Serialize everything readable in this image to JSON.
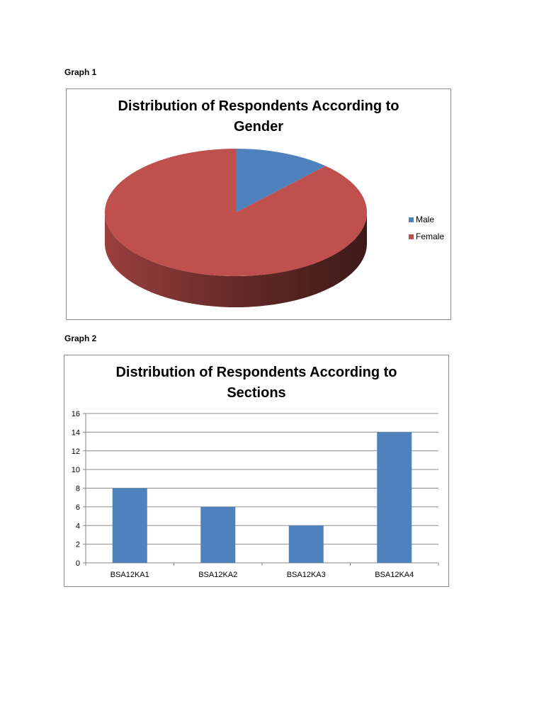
{
  "labels": {
    "graph1": "Graph 1",
    "graph2": "Graph 2"
  },
  "chart_data": [
    {
      "type": "pie",
      "title": "Distribution of Respondents According to Gender",
      "legend_position": "right",
      "series": [
        {
          "name": "Male",
          "value": 12,
          "color": "#4f81bd"
        },
        {
          "name": "Female",
          "value": 88,
          "color": "#c0504d"
        }
      ]
    },
    {
      "type": "bar",
      "title": "Distribution of Respondents According to Sections",
      "categories": [
        "BSA12KA1",
        "BSA12KA2",
        "BSA12KA3",
        "BSA12KA4"
      ],
      "values": [
        8,
        6,
        4,
        14
      ],
      "ylim": [
        0,
        16
      ],
      "yticks": [
        0,
        2,
        4,
        6,
        8,
        10,
        12,
        14,
        16
      ],
      "grid": true,
      "bar_color": "#4f81bd",
      "xlabel": "",
      "ylabel": ""
    }
  ]
}
